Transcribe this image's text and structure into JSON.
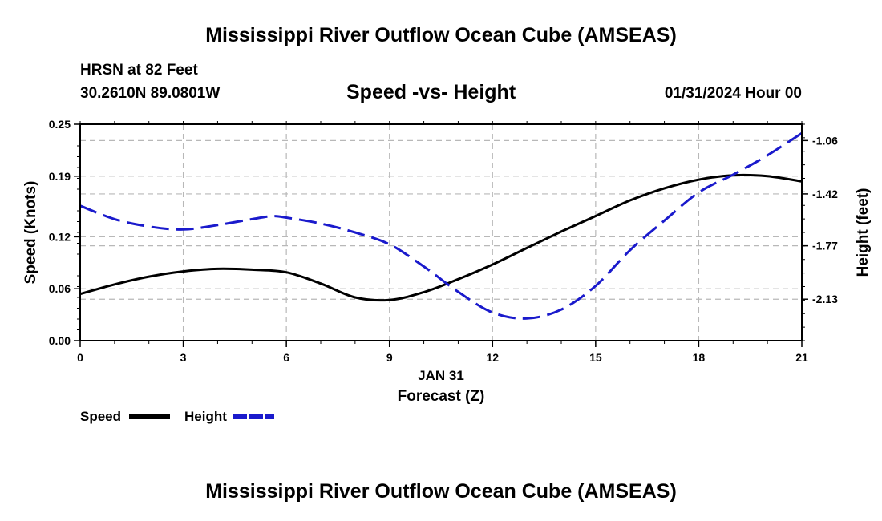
{
  "header": {
    "title": "Mississippi River Outflow Ocean Cube (AMSEAS)",
    "station": "HRSN at 82 Feet",
    "coordinates": "30.2610N  89.0801W",
    "subtitle": "Speed -vs- Height",
    "datetime": "01/31/2024 Hour 00"
  },
  "footer": {
    "title": "Mississippi River Outflow Ocean Cube (AMSEAS)"
  },
  "chart_data": {
    "type": "line",
    "title": "Speed -vs- Height",
    "xlabel": "Forecast (Z)",
    "xlabel_date": "JAN 31",
    "ylabel": "Speed (Knots)",
    "y2label": "Height (feet)",
    "xlim": [
      0,
      21
    ],
    "ylim": [
      0,
      0.25
    ],
    "y2lim": [
      -2.41,
      -0.95
    ],
    "x_ticks": [
      "0",
      "3",
      "6",
      "9",
      "12",
      "15",
      "18",
      "21"
    ],
    "y_ticks": [
      "0.00",
      "0.06",
      "0.12",
      "0.19",
      "0.25"
    ],
    "y2_ticks": [
      "-1.06",
      "-1.42",
      "-1.77",
      "-2.13"
    ],
    "grid": true,
    "legend_position": "bottom-left",
    "series": [
      {
        "name": "Speed",
        "axis": "left",
        "color": "#000000",
        "style": "solid",
        "x": [
          0,
          1,
          2,
          3,
          4,
          5,
          6,
          7,
          8,
          9,
          10,
          11,
          12,
          13,
          14,
          15,
          16,
          17,
          18,
          19,
          20,
          21
        ],
        "values": [
          0.054,
          0.065,
          0.074,
          0.08,
          0.083,
          0.082,
          0.079,
          0.066,
          0.05,
          0.047,
          0.056,
          0.071,
          0.088,
          0.107,
          0.126,
          0.144,
          0.162,
          0.176,
          0.186,
          0.191,
          0.19,
          0.184
        ]
      },
      {
        "name": "Height",
        "axis": "right",
        "color": "#1a1acc",
        "style": "dashed",
        "x": [
          0,
          1,
          2,
          3,
          4,
          5,
          5.6,
          6,
          7,
          8,
          9,
          10,
          11,
          12,
          13,
          14,
          15,
          16,
          17,
          18,
          19,
          20,
          21
        ],
        "values": [
          -1.5,
          -1.59,
          -1.64,
          -1.66,
          -1.63,
          -1.59,
          -1.57,
          -1.58,
          -1.62,
          -1.68,
          -1.76,
          -1.91,
          -2.08,
          -2.22,
          -2.26,
          -2.2,
          -2.04,
          -1.8,
          -1.6,
          -1.41,
          -1.29,
          -1.16,
          -1.01
        ]
      }
    ]
  }
}
